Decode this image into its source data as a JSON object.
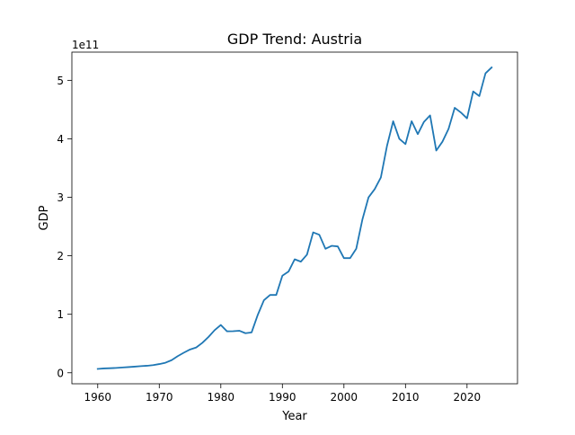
{
  "chart_data": {
    "type": "line",
    "title": "GDP Trend: Austria",
    "xlabel": "Year",
    "ylabel": "GDP",
    "y_offset_label": "1e11",
    "xlim": [
      1955.8,
      2028.2
    ],
    "ylim": [
      -0.188,
      5.482
    ],
    "x_ticks": [
      1960,
      1970,
      1980,
      1990,
      2000,
      2010,
      2020
    ],
    "x_tick_labels": [
      "1960",
      "1970",
      "1980",
      "1990",
      "2000",
      "2010",
      "2020"
    ],
    "y_ticks": [
      0,
      1,
      2,
      3,
      4,
      5
    ],
    "y_tick_labels": [
      "0",
      "1",
      "2",
      "3",
      "4",
      "5"
    ],
    "y_unit_multiplier": 100000000000,
    "grid": false,
    "legend": "none",
    "series": [
      {
        "color": "#1f77b4",
        "x": [
          1960,
          1961,
          1962,
          1963,
          1964,
          1965,
          1966,
          1967,
          1968,
          1969,
          1970,
          1971,
          1972,
          1973,
          1974,
          1975,
          1976,
          1977,
          1978,
          1979,
          1980,
          1981,
          1982,
          1983,
          1984,
          1985,
          1986,
          1987,
          1988,
          1989,
          1990,
          1991,
          1992,
          1993,
          1994,
          1995,
          1996,
          1997,
          1998,
          1999,
          2000,
          2001,
          2002,
          2003,
          2004,
          2005,
          2006,
          2007,
          2008,
          2009,
          2010,
          2011,
          2012,
          2013,
          2014,
          2015,
          2016,
          2017,
          2018,
          2019,
          2020,
          2021,
          2022,
          2023,
          2024
        ],
        "y": [
          0.066,
          0.074,
          0.078,
          0.083,
          0.09,
          0.097,
          0.105,
          0.113,
          0.12,
          0.131,
          0.149,
          0.172,
          0.215,
          0.284,
          0.344,
          0.398,
          0.432,
          0.512,
          0.613,
          0.729,
          0.817,
          0.709,
          0.711,
          0.719,
          0.676,
          0.69,
          0.99,
          1.24,
          1.33,
          1.33,
          1.66,
          1.73,
          1.94,
          1.9,
          2.02,
          2.4,
          2.36,
          2.12,
          2.17,
          2.16,
          1.96,
          1.96,
          2.12,
          2.62,
          3.0,
          3.14,
          3.34,
          3.88,
          4.3,
          4.0,
          3.91,
          4.3,
          4.08,
          4.29,
          4.4,
          3.8,
          3.95,
          4.17,
          4.53,
          4.45,
          4.35,
          4.81,
          4.73,
          5.12,
          5.22
        ]
      }
    ]
  }
}
